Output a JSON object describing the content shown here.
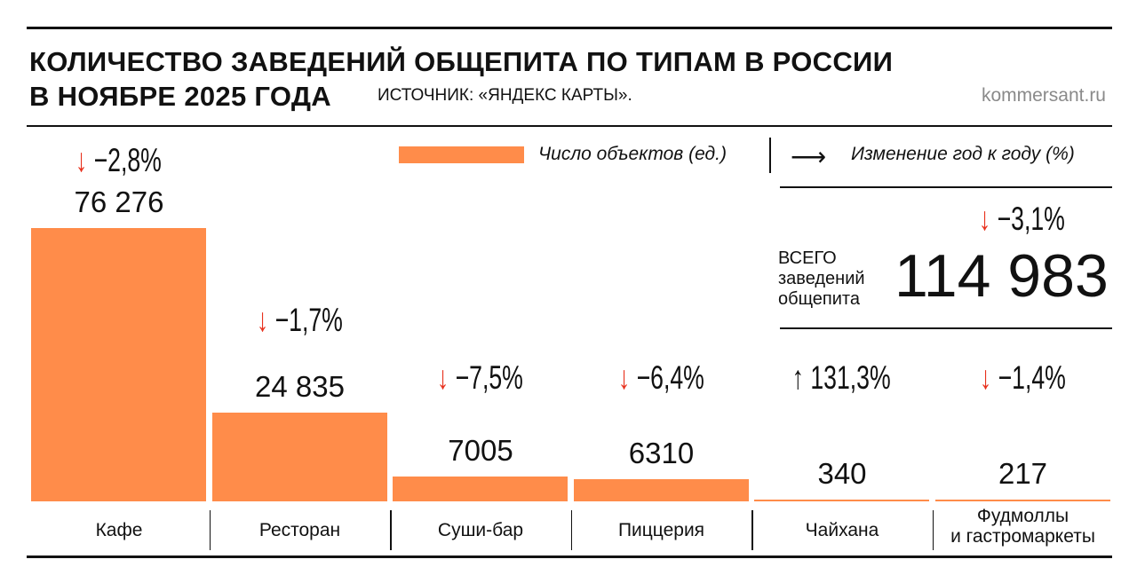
{
  "title_line1": "КОЛИЧЕСТВО ЗАВЕДЕНИЙ ОБЩЕПИТА ПО ТИПАМ В РОССИИ",
  "title_line2": "В НОЯБРЕ 2025 ГОДА",
  "source": "ИСТОЧНИК: «ЯНДЕКС КАРТЫ».",
  "site": "kommersant.ru",
  "legend": {
    "bars": "Число объектов (ед.)",
    "arrow": "Изменение год к году (%)",
    "arrow_glyph": "⟶"
  },
  "total": {
    "label_lines": [
      "ВСЕГО",
      "заведений",
      "общепита"
    ],
    "value": "114 983",
    "change": "−3,1%",
    "direction": "down"
  },
  "colors": {
    "bar": "#ff8c4a",
    "down_arrow": "#e8321e",
    "up_arrow": "#111111"
  },
  "chart_data": {
    "type": "bar",
    "title": "КОЛИЧЕСТВО ЗАВЕДЕНИЙ ОБЩЕПИТА ПО ТИПАМ В РОССИИ В НОЯБРЕ 2025 ГОДА",
    "categories": [
      "Кафе",
      "Ресторан",
      "Суши-бар",
      "Пиццерия",
      "Чайхана",
      "Фудмоллы\nи гастромаркеты"
    ],
    "values": [
      76276,
      24835,
      7005,
      6310,
      340,
      217
    ],
    "value_labels": [
      "76 276",
      "24 835",
      "7005",
      "6310",
      "340",
      "217"
    ],
    "yoy_change": [
      "−2,8%",
      "−1,7%",
      "−7,5%",
      "−6,4%",
      "131,3%",
      "−1,4%"
    ],
    "yoy_direction": [
      "down",
      "down",
      "down",
      "down",
      "up",
      "down"
    ],
    "ylim": [
      0,
      76276
    ],
    "grid": false,
    "legend_placement": "top-right"
  }
}
